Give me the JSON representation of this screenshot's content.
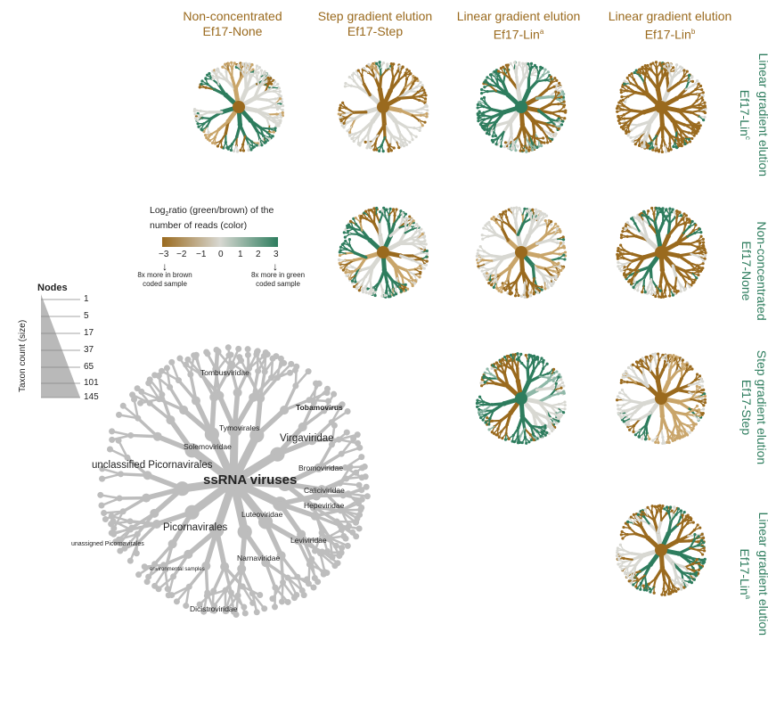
{
  "columns": [
    {
      "title": "Non-concentrated",
      "subtitle": "Ef17-None"
    },
    {
      "title": "Step gradient elution",
      "subtitle": "Ef17-Step"
    },
    {
      "title": "Linear gradient elution",
      "subtitle": "Ef17-Lin",
      "sup": "a"
    },
    {
      "title": "Linear gradient elution",
      "subtitle": "Ef17-Lin",
      "sup": "b"
    }
  ],
  "rows": [
    {
      "title": "Linear gradient elution",
      "subtitle": "Ef17-Lin",
      "sup": "c"
    },
    {
      "title": "Non-concentrated",
      "subtitle": "Ef17-None"
    },
    {
      "title": "Step gradient elution",
      "subtitle": "Ef17-Step"
    },
    {
      "title": "Linear gradient elution",
      "subtitle": "Ef17-Lin",
      "sup": "a"
    }
  ],
  "color_scale": {
    "title_line1_pre": "Log",
    "title_sub": "2",
    "title_line1_post": "ratio (green/brown) of the",
    "title_line2": "number of reads (color)",
    "ticks": [
      "−3",
      "−2",
      "−1",
      "0",
      "1",
      "2",
      "3"
    ],
    "left_note": "8x more in brown coded sample",
    "right_note": "8x more in green coded sample",
    "colors": {
      "brown": "#9a6a1e",
      "neutral": "#d8d8d2",
      "green": "#2e7d5e"
    }
  },
  "size_legend": {
    "title": "Nodes",
    "values": [
      "1",
      "5",
      "17",
      "37",
      "65",
      "101",
      "145"
    ],
    "axis_label": "Taxon count (size)"
  },
  "tree_labels": {
    "root": "ssRNA viruses",
    "picornavirales": "Picornavirales",
    "virgaviridae": "Virgaviridae",
    "unclassified": "unclassified Picornavirales",
    "tombusviridae": "Tombusviridae",
    "tymovirales": "Tymovirales",
    "solemoviridae": "Solemoviridae",
    "tobamovirus": "Tobamovirus",
    "bromoviridae": "Bromoviridae",
    "caliciviridae": "Caliciviridae",
    "hepeviridae": "Hepeviridae",
    "luteoviridae": "Luteoviridae",
    "leviviridae": "Leviviridae",
    "narnaviridae": "Narnaviridae",
    "unassigned": "unassigned Picornavirales",
    "environmental": "environmental samples",
    "dicistroviridae": "Dicistroviridae"
  }
}
